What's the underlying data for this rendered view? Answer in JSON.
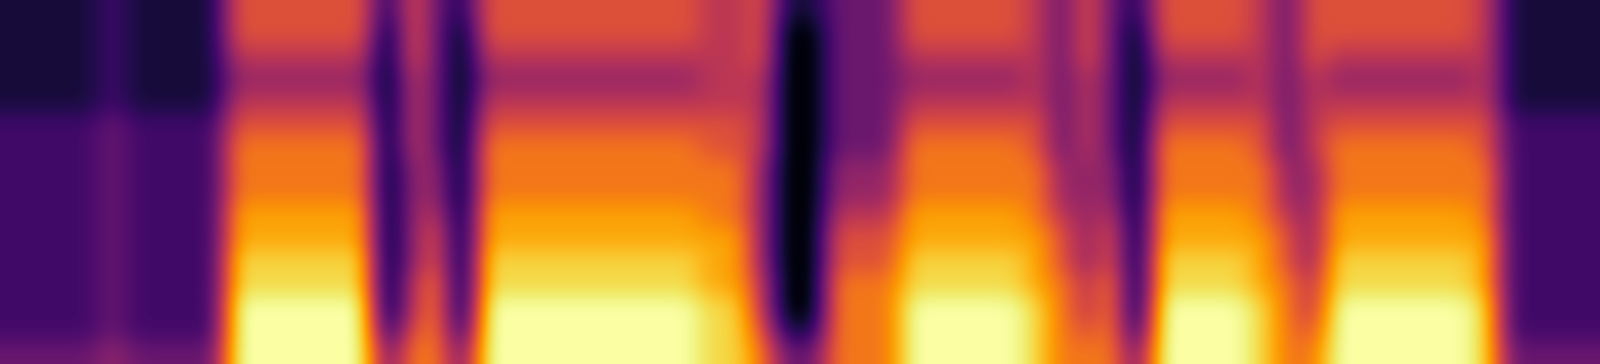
{
  "chart_data": {
    "type": "heatmap",
    "tick_labels": false,
    "values": [
      [
        1,
        1,
        1,
        1,
        2,
        1,
        1,
        1,
        1,
        6,
        6,
        6,
        6,
        6,
        6,
        1,
        6,
        3,
        1,
        6,
        6,
        6,
        6,
        6,
        6,
        6,
        6,
        6,
        5,
        5,
        6,
        1,
        1,
        3,
        3,
        3,
        6,
        6,
        6,
        6,
        6,
        5,
        3,
        6,
        3,
        1,
        6,
        6,
        6,
        6,
        5,
        3,
        6,
        6,
        6,
        6,
        6,
        6,
        6,
        5,
        1,
        1,
        1,
        1
      ],
      [
        1,
        1,
        1,
        1,
        2,
        1,
        1,
        1,
        1,
        6,
        6,
        6,
        6,
        6,
        6,
        0,
        6,
        3,
        0,
        6,
        6,
        6,
        6,
        6,
        6,
        6,
        6,
        6,
        5,
        5,
        6,
        0,
        0,
        3,
        3,
        3,
        6,
        6,
        6,
        6,
        6,
        5,
        3,
        6,
        3,
        0,
        6,
        6,
        6,
        6,
        5,
        3,
        6,
        6,
        6,
        6,
        6,
        6,
        6,
        5,
        1,
        1,
        1,
        1
      ],
      [
        1,
        1,
        1,
        1,
        2,
        1,
        1,
        1,
        1,
        5,
        5,
        5,
        5,
        5,
        5,
        0,
        6,
        3,
        0,
        5,
        5,
        5,
        5,
        5,
        5,
        5,
        5,
        5,
        5,
        5,
        6,
        0,
        0,
        3,
        3,
        3,
        5,
        5,
        5,
        5,
        5,
        5,
        3,
        6,
        3,
        0,
        5,
        5,
        5,
        5,
        5,
        3,
        6,
        5,
        5,
        5,
        5,
        5,
        5,
        5,
        1,
        1,
        1,
        1
      ],
      [
        1,
        1,
        1,
        1,
        2,
        1,
        1,
        1,
        1,
        4,
        4,
        4,
        4,
        4,
        4,
        0,
        5,
        3,
        0,
        4,
        4,
        4,
        4,
        4,
        4,
        4,
        4,
        4,
        5,
        5,
        5,
        0,
        0,
        3,
        3,
        3,
        4,
        4,
        4,
        4,
        4,
        5,
        3,
        5,
        3,
        0,
        4,
        4,
        4,
        4,
        5,
        3,
        5,
        4,
        4,
        4,
        4,
        4,
        4,
        5,
        1,
        1,
        1,
        1
      ],
      [
        1,
        1,
        1,
        1,
        2,
        1,
        1,
        1,
        1,
        5,
        5,
        5,
        5,
        5,
        5,
        0,
        5,
        3,
        0,
        5,
        5,
        5,
        5,
        5,
        5,
        5,
        5,
        5,
        5,
        5,
        5,
        0,
        0,
        3,
        3,
        3,
        5,
        5,
        5,
        5,
        5,
        5,
        3,
        5,
        3,
        0,
        5,
        5,
        5,
        5,
        5,
        3,
        5,
        5,
        5,
        5,
        5,
        5,
        5,
        5,
        1,
        1,
        1,
        1
      ],
      [
        2,
        2,
        2,
        2,
        3,
        2,
        2,
        2,
        2,
        6,
        6,
        6,
        6,
        6,
        6,
        0,
        5,
        3,
        0,
        6,
        6,
        6,
        6,
        6,
        6,
        6,
        6,
        6,
        6,
        6,
        5,
        0,
        0,
        3,
        3,
        3,
        6,
        6,
        6,
        6,
        6,
        6,
        3,
        5,
        3,
        0,
        6,
        6,
        6,
        6,
        6,
        3,
        5,
        6,
        6,
        6,
        6,
        6,
        6,
        6,
        2,
        2,
        2,
        2
      ],
      [
        2,
        2,
        2,
        2,
        3,
        2,
        2,
        2,
        2,
        7,
        7,
        7,
        7,
        7,
        7,
        0,
        5,
        3,
        0,
        7,
        7,
        7,
        7,
        7,
        7,
        7,
        7,
        7,
        6,
        6,
        5,
        0,
        0,
        3,
        3,
        3,
        7,
        7,
        7,
        7,
        7,
        6,
        3,
        5,
        3,
        0,
        7,
        7,
        7,
        7,
        6,
        3,
        5,
        7,
        7,
        7,
        7,
        7,
        7,
        6,
        2,
        2,
        2,
        2
      ],
      [
        2,
        2,
        2,
        2,
        3,
        2,
        2,
        2,
        2,
        7,
        7,
        7,
        7,
        7,
        7,
        0,
        4,
        4,
        0,
        7,
        7,
        7,
        7,
        7,
        7,
        7,
        7,
        7,
        7,
        7,
        4,
        0,
        0,
        4,
        4,
        4,
        7,
        7,
        7,
        7,
        7,
        7,
        4,
        4,
        4,
        0,
        7,
        7,
        7,
        7,
        7,
        4,
        4,
        7,
        7,
        7,
        7,
        7,
        7,
        7,
        2,
        2,
        2,
        2
      ],
      [
        2,
        2,
        2,
        2,
        3,
        2,
        2,
        2,
        2,
        7,
        7,
        7,
        7,
        7,
        7,
        0,
        4,
        4,
        0,
        7,
        7,
        7,
        7,
        7,
        7,
        7,
        7,
        7,
        7,
        7,
        4,
        0,
        0,
        4,
        4,
        4,
        7,
        7,
        7,
        7,
        7,
        7,
        4,
        4,
        4,
        0,
        7,
        7,
        7,
        7,
        7,
        4,
        4,
        7,
        7,
        7,
        7,
        7,
        7,
        7,
        2,
        2,
        2,
        2
      ],
      [
        2,
        2,
        2,
        2,
        3,
        2,
        2,
        2,
        2,
        8,
        8,
        8,
        8,
        8,
        8,
        0,
        4,
        5,
        0,
        8,
        8,
        8,
        8,
        8,
        8,
        8,
        8,
        8,
        7,
        7,
        4,
        0,
        0,
        5,
        5,
        5,
        8,
        8,
        8,
        8,
        8,
        7,
        5,
        4,
        5,
        0,
        8,
        8,
        8,
        8,
        7,
        5,
        4,
        8,
        8,
        8,
        8,
        8,
        8,
        7,
        2,
        2,
        2,
        2
      ],
      [
        2,
        2,
        2,
        2,
        3,
        2,
        2,
        2,
        2,
        8,
        8,
        8,
        8,
        8,
        8,
        0,
        4,
        6,
        0,
        8,
        8,
        8,
        8,
        8,
        8,
        8,
        8,
        8,
        8,
        8,
        4,
        0,
        0,
        6,
        6,
        6,
        8,
        8,
        8,
        8,
        8,
        8,
        6,
        4,
        6,
        0,
        8,
        8,
        8,
        8,
        8,
        6,
        4,
        8,
        8,
        8,
        8,
        8,
        8,
        8,
        2,
        2,
        2,
        2
      ],
      [
        2,
        2,
        2,
        2,
        3,
        2,
        2,
        2,
        2,
        9,
        9,
        9,
        9,
        9,
        9,
        0,
        4,
        6,
        0,
        9,
        9,
        9,
        9,
        9,
        9,
        9,
        9,
        9,
        8,
        8,
        4,
        0,
        0,
        6,
        6,
        6,
        9,
        9,
        9,
        9,
        9,
        8,
        6,
        4,
        6,
        0,
        9,
        9,
        9,
        9,
        8,
        6,
        4,
        9,
        9,
        9,
        9,
        9,
        9,
        8,
        2,
        2,
        2,
        2
      ],
      [
        2,
        2,
        2,
        2,
        3,
        2,
        2,
        2,
        2,
        9,
        9,
        9,
        9,
        9,
        9,
        0,
        5,
        7,
        0,
        9,
        9,
        9,
        9,
        9,
        9,
        9,
        9,
        9,
        8,
        8,
        5,
        0,
        0,
        7,
        7,
        7,
        9,
        9,
        9,
        9,
        9,
        8,
        7,
        5,
        7,
        0,
        9,
        9,
        9,
        9,
        8,
        7,
        5,
        9,
        9,
        9,
        9,
        9,
        9,
        8,
        2,
        2,
        2,
        2
      ],
      [
        2,
        2,
        2,
        2,
        3,
        2,
        2,
        2,
        2,
        10,
        10,
        10,
        10,
        10,
        10,
        0,
        5,
        7,
        0,
        10,
        10,
        10,
        10,
        10,
        10,
        10,
        10,
        10,
        9,
        9,
        5,
        0,
        0,
        7,
        7,
        7,
        10,
        10,
        10,
        10,
        10,
        9,
        7,
        5,
        7,
        0,
        10,
        10,
        10,
        10,
        9,
        7,
        5,
        10,
        10,
        10,
        10,
        10,
        10,
        9,
        2,
        2,
        2,
        2
      ],
      [
        2,
        2,
        2,
        2,
        3,
        2,
        2,
        2,
        2,
        10,
        10,
        10,
        10,
        10,
        10,
        1,
        6,
        7,
        1,
        10,
        10,
        10,
        10,
        10,
        10,
        10,
        10,
        10,
        9,
        9,
        6,
        1,
        1,
        7,
        7,
        7,
        10,
        10,
        10,
        10,
        10,
        9,
        7,
        6,
        7,
        1,
        10,
        10,
        10,
        10,
        9,
        7,
        6,
        10,
        10,
        10,
        10,
        10,
        10,
        9,
        2,
        2,
        2,
        2
      ],
      [
        3,
        3,
        3,
        3,
        4,
        3,
        3,
        3,
        3,
        10,
        10,
        10,
        10,
        10,
        10,
        3,
        7,
        7,
        3,
        10,
        10,
        10,
        10,
        10,
        10,
        10,
        10,
        10,
        9,
        9,
        7,
        3,
        3,
        7,
        7,
        7,
        10,
        10,
        10,
        10,
        10,
        9,
        7,
        7,
        7,
        3,
        10,
        10,
        10,
        10,
        9,
        7,
        7,
        10,
        10,
        10,
        10,
        10,
        10,
        9,
        3,
        3,
        3,
        3
      ]
    ]
  }
}
